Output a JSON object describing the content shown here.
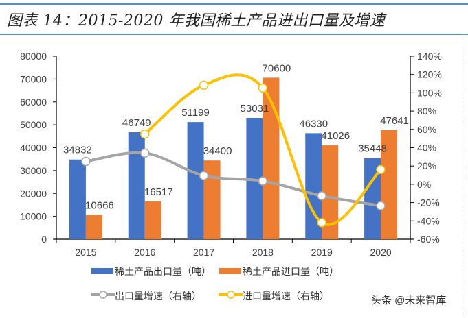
{
  "title": "图表 14：2015-2020 年我国稀土产品进出口量及增速",
  "watermark": "头条 @未来智库",
  "colors": {
    "export_bar": "#4472c4",
    "import_bar": "#ed7d31",
    "export_growth": "#a5a5a5",
    "import_growth": "#ffc000",
    "rule": "#5b8ec9"
  },
  "chart_data": {
    "type": "bar",
    "title": "2015-2020 年我国稀土产品进出口量及增速",
    "categories": [
      "2015",
      "2016",
      "2017",
      "2018",
      "2019",
      "2020"
    ],
    "left_axis": {
      "ylim": [
        0,
        80000
      ],
      "ticks": [
        "0",
        "10000",
        "20000",
        "30000",
        "40000",
        "50000",
        "60000",
        "70000",
        "80000"
      ]
    },
    "right_axis": {
      "ylim": [
        -60,
        140
      ],
      "ticks": [
        "-60%",
        "-40%",
        "-20%",
        "0%",
        "20%",
        "40%",
        "60%",
        "80%",
        "100%",
        "120%",
        "140%"
      ]
    },
    "series": [
      {
        "name": "稀土产品出口量（吨）",
        "type": "bar",
        "axis": "left",
        "values": [
          34832,
          46749,
          51199,
          53031,
          46330,
          35448
        ],
        "labels": [
          "34832",
          "46749",
          "51199",
          "53031",
          "46330",
          "35448"
        ]
      },
      {
        "name": "稀土产品进口量（吨）",
        "type": "bar",
        "axis": "left",
        "values": [
          10666,
          16517,
          34400,
          70600,
          41026,
          47641
        ],
        "labels": [
          "10666",
          "16517",
          "34400",
          "70600",
          "41026",
          "47641"
        ]
      },
      {
        "name": "出口量增速（右轴）",
        "type": "line",
        "axis": "right",
        "values": [
          25,
          34.2,
          9.5,
          3.6,
          -12.6,
          -23.5
        ]
      },
      {
        "name": "进口量增速（右轴）",
        "type": "line",
        "axis": "right",
        "values": [
          null,
          54.9,
          108.3,
          105.2,
          -41.9,
          16.1
        ]
      }
    ],
    "legend_position": "bottom",
    "grid": false
  }
}
